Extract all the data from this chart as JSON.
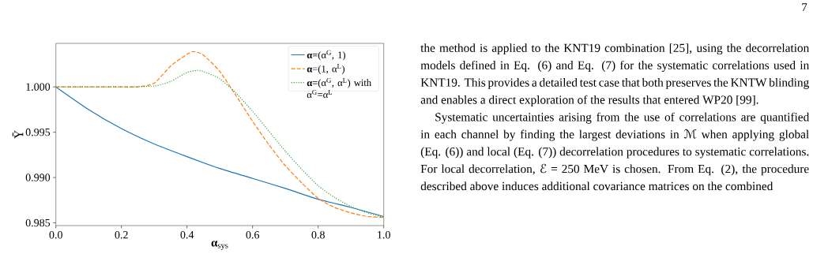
{
  "chart_data": {
    "type": "line",
    "xlabel": "**α**$_{sys}$",
    "ylabel": "Ȳ",
    "xlim": [
      0,
      1
    ],
    "ylim": [
      0.9847,
      1.0048
    ],
    "xticks": [
      {
        "value": 0,
        "label": "0.0"
      },
      {
        "value": 0.2,
        "label": "0.2"
      },
      {
        "value": 0.4,
        "label": "0.4"
      },
      {
        "value": 0.6,
        "label": "0.6"
      },
      {
        "value": 0.8,
        "label": "0.8"
      },
      {
        "value": 1,
        "label": "1.0"
      }
    ],
    "yticks": [
      0.985,
      {
        "value": 0.99,
        "label": "0.990"
      },
      0.995,
      {
        "value": 1,
        "label": "1.000"
      }
    ],
    "legend": "top right",
    "series": [
      {
        "name": "**α**=(α$^{G}$, 1)",
        "color": "#1f77b4",
        "line_style": "solid",
        "x": [
          0,
          0.1,
          0.2,
          0.3,
          0.4,
          0.5,
          0.6,
          0.7,
          0.8,
          0.9,
          1.0
        ],
        "values": [
          1.0,
          0.9975,
          0.9954,
          0.9937,
          0.9923,
          0.991,
          0.9899,
          0.9888,
          0.9876,
          0.9867,
          0.9857
        ]
      },
      {
        "name": "**α**=(1, α$^{L}$)",
        "color": "#ff7f0e",
        "line_style": "dashed",
        "x": [
          0,
          0.1,
          0.2,
          0.25,
          0.3,
          0.35,
          0.4,
          0.42,
          0.45,
          0.5,
          0.55,
          0.6,
          0.65,
          0.7,
          0.75,
          0.8,
          0.85,
          0.9,
          0.95,
          1.0
        ],
        "values": [
          1.0,
          1.0,
          1.0,
          1.0,
          1.0004,
          1.0023,
          1.0036,
          1.0039,
          1.0035,
          1.0017,
          0.999,
          0.9962,
          0.9936,
          0.9913,
          0.9894,
          0.9877,
          0.9867,
          0.9861,
          0.9857,
          0.9856
        ]
      },
      {
        "name": "**α**=(α$^{G}$, α$^{L}$) with α$^{G}$=α$^{L}$",
        "color": "#2ca02c",
        "line_style": "dotted",
        "x": [
          0,
          0.1,
          0.2,
          0.3,
          0.35,
          0.4,
          0.43,
          0.45,
          0.5,
          0.55,
          0.6,
          0.65,
          0.7,
          0.75,
          0.8,
          0.85,
          0.9,
          0.95,
          1.0
        ],
        "values": [
          1.0,
          1.0,
          1.0,
          1.0001,
          1.0006,
          1.0016,
          1.0018,
          1.0017,
          1.0009,
          0.9993,
          0.9973,
          0.9951,
          0.9929,
          0.9909,
          0.9891,
          0.9878,
          0.9868,
          0.9861,
          0.9856
        ]
      }
    ],
    "annotations": [
      "7",
      "the method is applied to the KNT19 combination [25], using the decorrelation models defined in Eq. (6) and Eq. (7) for the systematic correlations used in KNT19. This provides a detailed test case that both preserves the KNTW blinding and enables a direct exploration of the results that entered WP20 [99].",
      "Systematic uncertainties arising from the use of correlations are quantified in each channel by finding the largest deviations in ℳ when applying global (Eq. (6)) and local (Eq. (7)) decorrelation procedures to systematic correlations. For local decorrelation, ℰ = 250 MeV is chosen. From Eq. (2), the procedure described above induces additional covariance matrices on the combined"
    ]
  }
}
